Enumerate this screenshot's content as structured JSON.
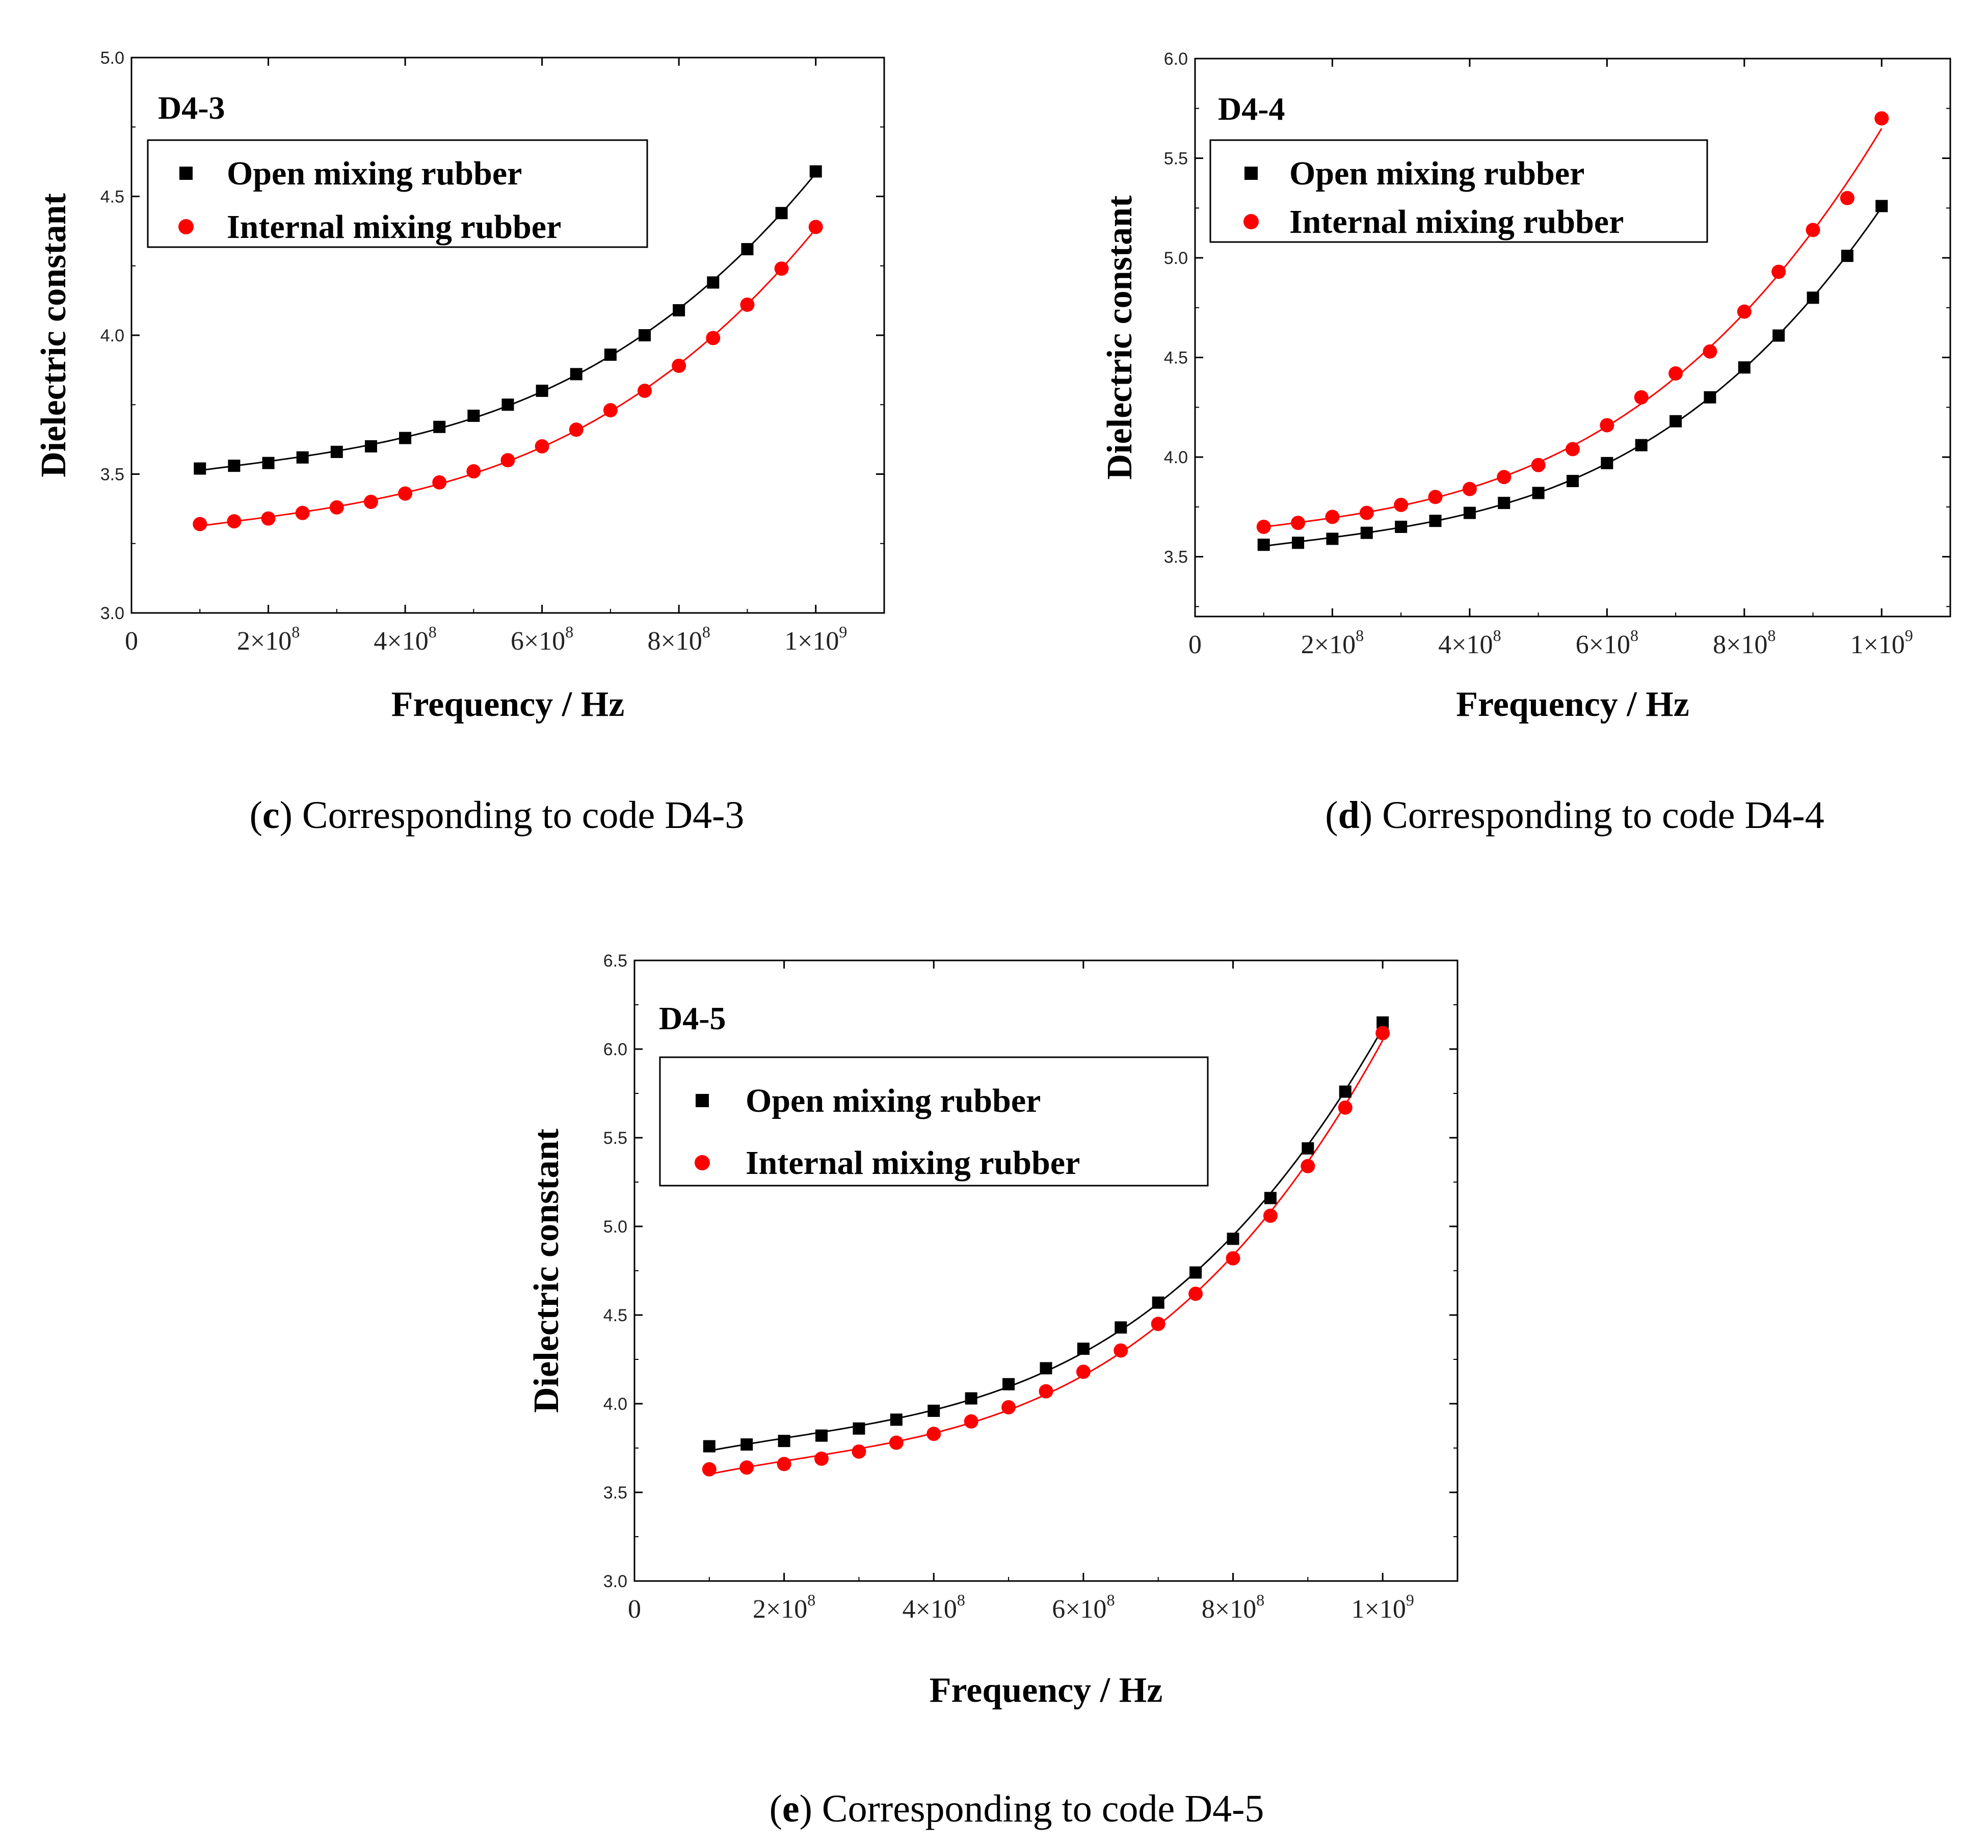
{
  "chart_data": [
    {
      "type": "scatter",
      "title": "D4-3",
      "caption": {
        "letter": "c",
        "text": "Corresponding to code D4-3"
      },
      "xlabel": "Frequency / Hz",
      "ylabel": "Dielectric constant",
      "xlim": [
        0,
        1100000000.0
      ],
      "ylim": [
        3.0,
        5.0
      ],
      "yticks": [
        "3.0",
        "3.5",
        "4.0",
        "4.5",
        "5.0"
      ],
      "xticks": [
        {
          "label": "0",
          "mant": "",
          "exp": "",
          "value": 0
        },
        {
          "label": "2×10^8",
          "mant": "2×10",
          "exp": "8",
          "value": 200000000.0
        },
        {
          "label": "4×10^8",
          "mant": "4×10",
          "exp": "8",
          "value": 400000000.0
        },
        {
          "label": "6×10^8",
          "mant": "6×10",
          "exp": "8",
          "value": 600000000.0
        },
        {
          "label": "8×10^8",
          "mant": "8×10",
          "exp": "8",
          "value": 800000000.0
        },
        {
          "label": "1×10^9",
          "mant": "1×10",
          "exp": "9",
          "value": 1000000000.0
        }
      ],
      "legend": {
        "position": "top-left"
      },
      "x": [
        100000000.0,
        150000000.0,
        200000000.0,
        250000000.0,
        300000000.0,
        350000000.0,
        400000000.0,
        450000000.0,
        500000000.0,
        550000000.0,
        600000000.0,
        650000000.0,
        700000000.0,
        750000000.0,
        800000000.0,
        850000000.0,
        900000000.0,
        950000000.0,
        1000000000.0
      ],
      "series": [
        {
          "name": "Open mixing rubber",
          "marker": "square",
          "color": "#000000",
          "values": [
            3.52,
            3.53,
            3.54,
            3.56,
            3.58,
            3.6,
            3.63,
            3.67,
            3.71,
            3.75,
            3.8,
            3.86,
            3.93,
            4.0,
            4.09,
            4.19,
            4.31,
            4.44,
            4.59
          ]
        },
        {
          "name": "Internal mixing rubber",
          "marker": "circle",
          "color": "#ff0000",
          "values": [
            3.32,
            3.33,
            3.34,
            3.36,
            3.38,
            3.4,
            3.43,
            3.47,
            3.51,
            3.55,
            3.6,
            3.66,
            3.73,
            3.8,
            3.89,
            3.99,
            4.11,
            4.24,
            4.39
          ]
        }
      ]
    },
    {
      "type": "scatter",
      "title": "D4-4",
      "caption": {
        "letter": "d",
        "text": "Corresponding to code D4-4"
      },
      "xlabel": "Frequency / Hz",
      "ylabel": "Dielectric constant",
      "xlim": [
        0,
        1100000000.0
      ],
      "ylim": [
        3.2,
        6.0
      ],
      "yticks": [
        "3.5",
        "4.0",
        "4.5",
        "5.0",
        "5.5",
        "6.0"
      ],
      "xticks": [
        {
          "label": "0",
          "mant": "",
          "exp": "",
          "value": 0
        },
        {
          "label": "2×10^8",
          "mant": "2×10",
          "exp": "8",
          "value": 200000000.0
        },
        {
          "label": "4×10^8",
          "mant": "4×10",
          "exp": "8",
          "value": 400000000.0
        },
        {
          "label": "6×10^8",
          "mant": "6×10",
          "exp": "8",
          "value": 600000000.0
        },
        {
          "label": "8×10^8",
          "mant": "8×10",
          "exp": "8",
          "value": 800000000.0
        },
        {
          "label": "1×10^9",
          "mant": "1×10",
          "exp": "9",
          "value": 1000000000.0
        }
      ],
      "legend": {
        "position": "top-left"
      },
      "x": [
        100000000.0,
        150000000.0,
        200000000.0,
        250000000.0,
        300000000.0,
        350000000.0,
        400000000.0,
        450000000.0,
        500000000.0,
        550000000.0,
        600000000.0,
        650000000.0,
        700000000.0,
        750000000.0,
        800000000.0,
        850000000.0,
        900000000.0,
        950000000.0,
        1000000000.0
      ],
      "series": [
        {
          "name": "Open mixing rubber",
          "marker": "square",
          "color": "#000000",
          "values": [
            3.56,
            3.57,
            3.59,
            3.62,
            3.65,
            3.68,
            3.72,
            3.77,
            3.82,
            3.88,
            3.97,
            4.06,
            4.18,
            4.3,
            4.45,
            4.61,
            4.8,
            5.01,
            5.26
          ]
        },
        {
          "name": "Internal mixing rubber",
          "marker": "circle",
          "color": "#ff0000",
          "values": [
            3.65,
            3.67,
            3.7,
            3.72,
            3.76,
            3.8,
            3.84,
            3.9,
            3.96,
            4.04,
            4.16,
            4.3,
            4.42,
            4.53,
            4.73,
            4.93,
            5.14,
            5.3,
            5.7
          ]
        }
      ]
    },
    {
      "type": "scatter",
      "title": "D4-5",
      "caption": {
        "letter": "e",
        "text": "Corresponding to code D4-5"
      },
      "xlabel": "Frequency / Hz",
      "ylabel": "Dielectric constant",
      "xlim": [
        0,
        1100000000.0
      ],
      "ylim": [
        3.0,
        6.5
      ],
      "yticks": [
        "3.0",
        "3.5",
        "4.0",
        "4.5",
        "5.0",
        "5.5",
        "6.0",
        "6.5"
      ],
      "xticks": [
        {
          "label": "0",
          "mant": "",
          "exp": "",
          "value": 0
        },
        {
          "label": "2×10^8",
          "mant": "2×10",
          "exp": "8",
          "value": 200000000.0
        },
        {
          "label": "4×10^8",
          "mant": "4×10",
          "exp": "8",
          "value": 400000000.0
        },
        {
          "label": "6×10^8",
          "mant": "6×10",
          "exp": "8",
          "value": 600000000.0
        },
        {
          "label": "8×10^8",
          "mant": "8×10",
          "exp": "8",
          "value": 800000000.0
        },
        {
          "label": "1×10^9",
          "mant": "1×10",
          "exp": "9",
          "value": 1000000000.0
        }
      ],
      "legend": {
        "position": "top-left"
      },
      "x": [
        100000000.0,
        150000000.0,
        200000000.0,
        250000000.0,
        300000000.0,
        350000000.0,
        400000000.0,
        450000000.0,
        500000000.0,
        550000000.0,
        600000000.0,
        650000000.0,
        700000000.0,
        750000000.0,
        800000000.0,
        850000000.0,
        900000000.0,
        950000000.0,
        1000000000.0
      ],
      "series": [
        {
          "name": "Open mixing rubber",
          "marker": "square",
          "color": "#000000",
          "values": [
            3.76,
            3.77,
            3.79,
            3.82,
            3.86,
            3.91,
            3.96,
            4.03,
            4.11,
            4.2,
            4.31,
            4.43,
            4.57,
            4.74,
            4.93,
            5.16,
            5.44,
            5.76,
            6.15
          ]
        },
        {
          "name": "Internal mixing rubber",
          "marker": "circle",
          "color": "#ff0000",
          "values": [
            3.63,
            3.64,
            3.66,
            3.69,
            3.73,
            3.78,
            3.83,
            3.9,
            3.98,
            4.07,
            4.18,
            4.3,
            4.45,
            4.62,
            4.82,
            5.06,
            5.34,
            5.67,
            6.09
          ]
        }
      ]
    }
  ]
}
